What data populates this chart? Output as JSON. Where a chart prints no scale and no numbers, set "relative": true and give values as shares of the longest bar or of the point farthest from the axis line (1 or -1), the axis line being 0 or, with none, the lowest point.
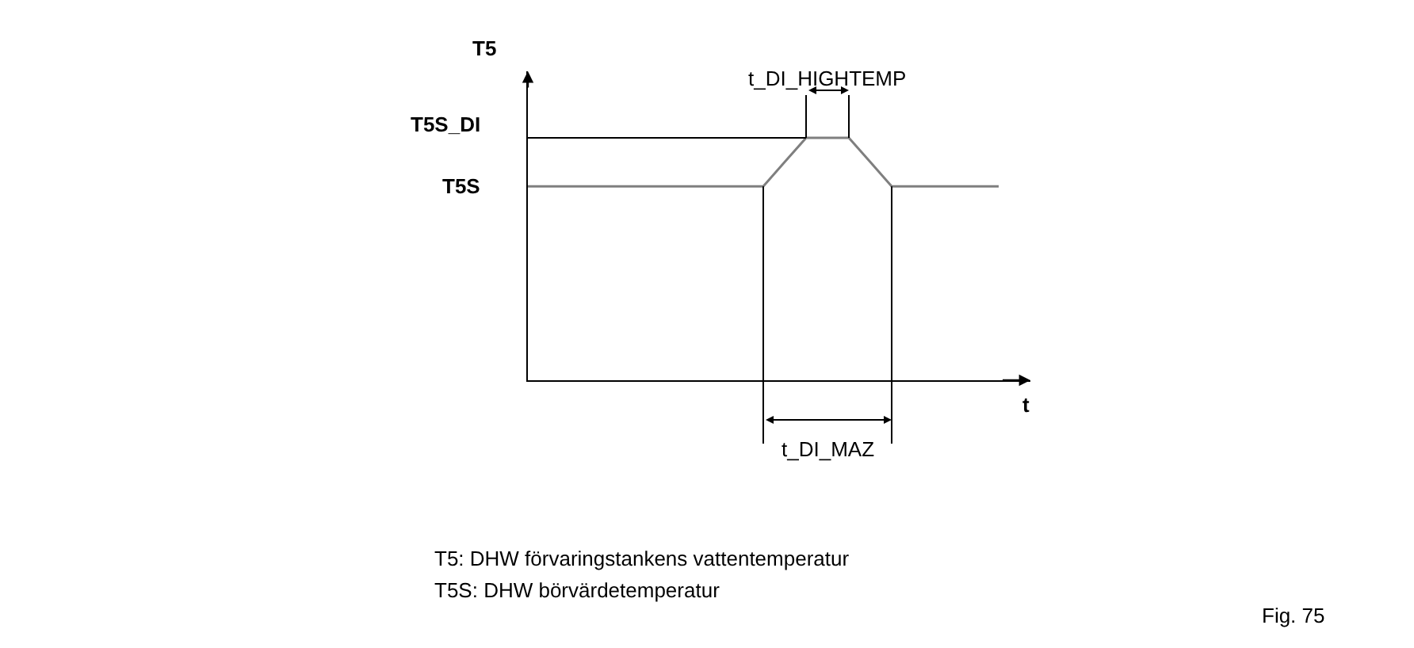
{
  "chart_data": {
    "type": "line",
    "relative": true,
    "xlabel": "t",
    "ylabel": "T5",
    "categories": [
      null,
      null,
      null,
      null,
      null,
      null,
      null,
      null,
      null,
      null,
      null,
      null,
      null,
      null,
      null,
      null,
      null,
      null,
      null,
      null,
      null,
      null,
      null
    ],
    "series": [
      {
        "color": "#7f7f7f",
        "values": [
          0.8,
          0.8,
          0.8,
          0.8,
          0.8,
          0.8,
          0.8,
          0.8,
          0.8,
          0.8,
          0.8,
          0.8,
          0.9,
          1,
          1,
          1,
          0.9,
          0.8,
          0.8,
          0.8,
          0.8,
          0.8,
          0.8
        ]
      }
    ],
    "ref_lines": [
      {
        "axis": "y",
        "value": 1,
        "color": "#000000",
        "label": "T5S_DI"
      }
    ],
    "annotations": [
      "T5S",
      "t_DI_HIGHTEMP",
      "t_DI_MAZ",
      "T5: DHW förvaringstankens vattentemperatur",
      "T5S: DHW börvärdetemperatur",
      "Fig. 75"
    ],
    "marker": "none",
    "line_style": "solid"
  }
}
